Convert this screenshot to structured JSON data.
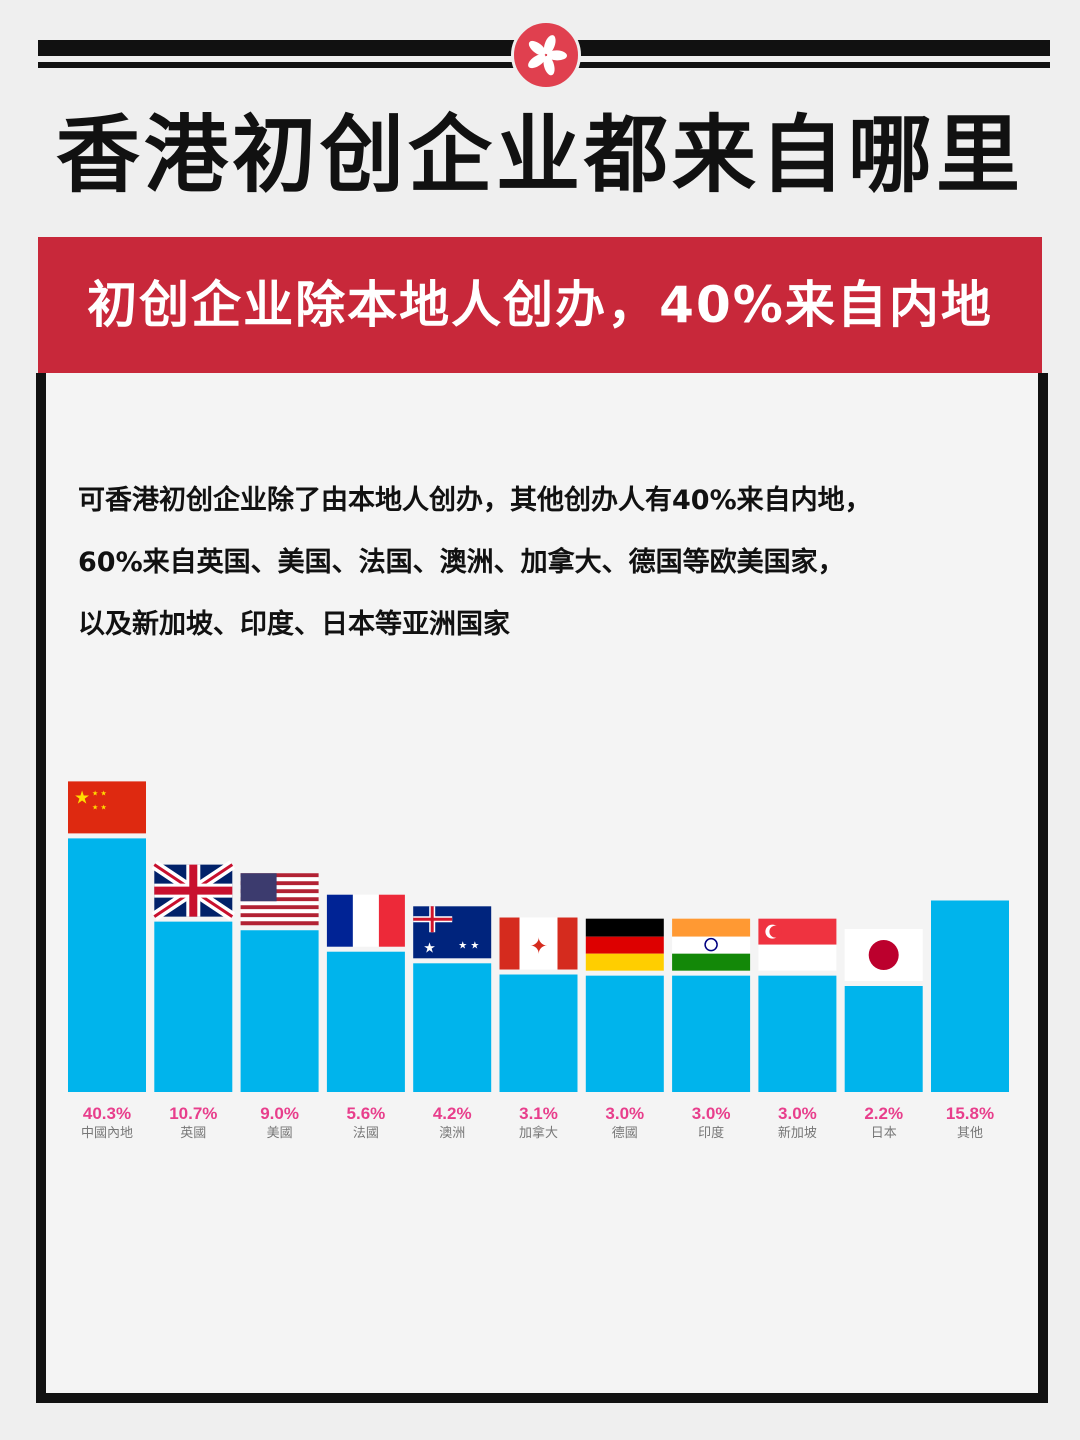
{
  "header": {
    "title": "香港初创企业都来自哪里",
    "emblem": "hong-kong-bauhinia-icon"
  },
  "banner": {
    "text": "初创企业除本地人创办，40%来自内地",
    "color": "#c8283a"
  },
  "description": [
    "可香港初创企业除了由本地人创办，其他创办人有40%来自内地，",
    "60%来自英国、美国、法国、澳洲、加拿大、德国等欧美国家，",
    "以及新加坡、印度、日本等亚洲国家"
  ],
  "chart_data": {
    "type": "bar",
    "categories": [
      "中國內地",
      "英國",
      "美國",
      "法國",
      "澳洲",
      "加拿大",
      "德國",
      "印度",
      "新加坡",
      "日本",
      "其他"
    ],
    "values": [
      40.3,
      10.7,
      9.0,
      5.6,
      4.2,
      3.1,
      3.0,
      3.0,
      3.0,
      2.2,
      15.8
    ],
    "value_labels": [
      "40.3%",
      "10.7%",
      "9.0%",
      "5.6%",
      "4.2%",
      "3.1%",
      "3.0%",
      "3.0%",
      "3.0%",
      "2.2%",
      "15.8%"
    ],
    "unit": "%",
    "flags": [
      "china",
      "uk",
      "usa",
      "france",
      "australia",
      "canada",
      "germany",
      "india",
      "singapore",
      "japan",
      ""
    ],
    "bar_color": "#00b4ec",
    "label_color": "#e83e8c",
    "grid": false
  }
}
